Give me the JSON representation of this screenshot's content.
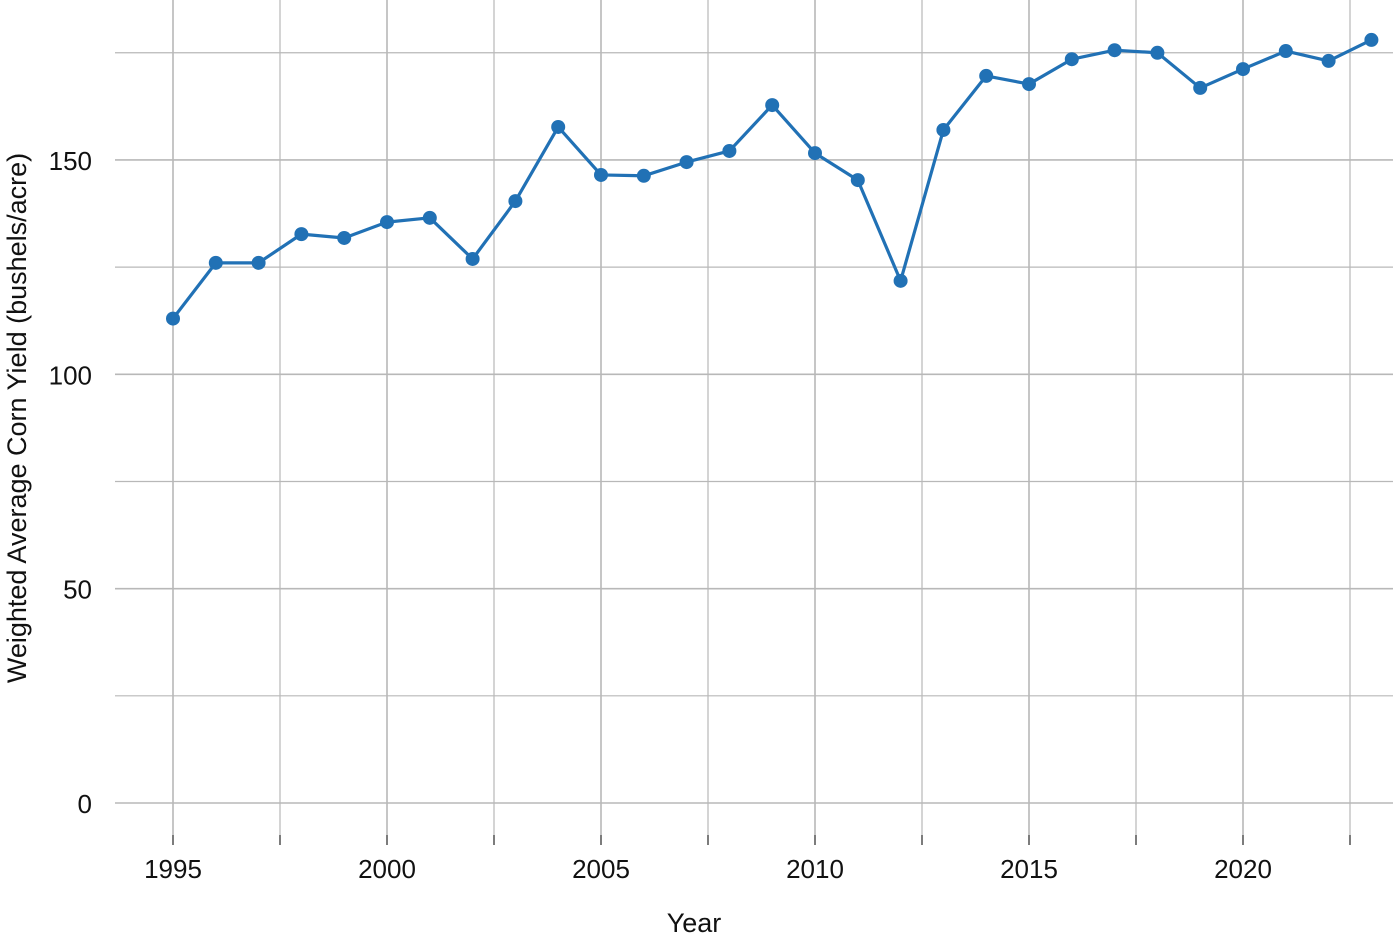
{
  "chart_data": {
    "type": "line",
    "title": "",
    "xlabel": "Year",
    "ylabel": "Weighted Average Corn Yield (bushels/acre)",
    "x": [
      1995,
      1996,
      1997,
      1998,
      1999,
      2000,
      2001,
      2002,
      2003,
      2004,
      2005,
      2006,
      2007,
      2008,
      2009,
      2010,
      2011,
      2012,
      2013,
      2014,
      2015,
      2016,
      2017,
      2018,
      2019,
      2020,
      2021,
      2022,
      2023
    ],
    "series": [
      {
        "values": [
          113,
          126,
          126,
          132.7,
          131.8,
          135.5,
          136.5,
          126.9,
          140.4,
          157.7,
          146.5,
          146.3,
          149.5,
          152.1,
          162.8,
          151.6,
          145.3,
          121.8,
          157,
          169.6,
          167.7,
          173.5,
          175.6,
          175,
          166.8,
          171.2,
          175.4,
          173.1,
          178
        ],
        "color": "#2171b5"
      }
    ],
    "xticks": [
      "1995",
      "2000",
      "2005",
      "2010",
      "2015",
      "2020"
    ],
    "yticks": [
      "0",
      "50",
      "100",
      "150"
    ],
    "xlim": [
      1993.65,
      2023.5
    ],
    "ylim": [
      -7.5,
      187.3
    ],
    "grid": true,
    "legend": "none"
  }
}
